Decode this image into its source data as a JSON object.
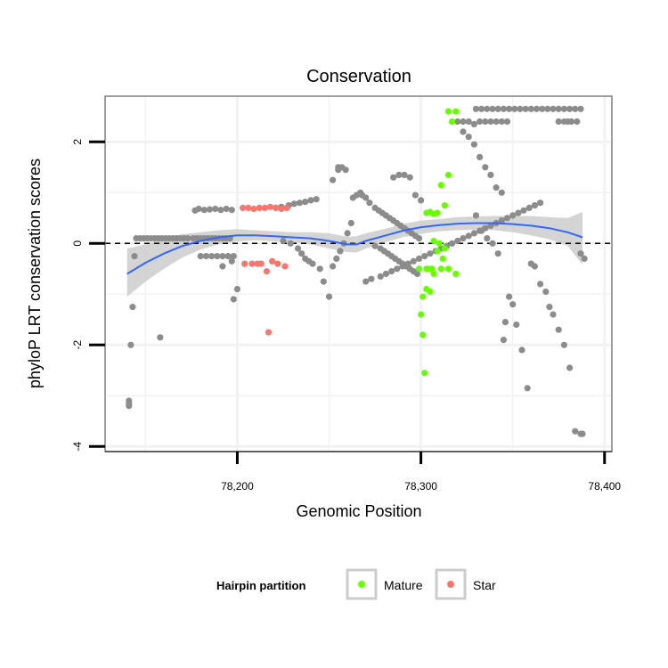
{
  "chart_data": {
    "type": "scatter",
    "title": "Conservation",
    "xlabel": "Genomic Position",
    "ylabel": "phyloP LRT conservation scores",
    "xlim": [
      78128,
      78404
    ],
    "ylim": [
      -4.1,
      2.9
    ],
    "x_ticks": [
      78200,
      78300,
      78400
    ],
    "x_tick_labels": [
      "78,200",
      "78,300",
      "78,400"
    ],
    "y_ticks": [
      -4,
      -2,
      0,
      2
    ],
    "y_tick_labels": [
      "-4",
      "-2",
      "0",
      "2"
    ],
    "grid": true,
    "reference_line": {
      "y": 0,
      "style": "dashed",
      "color": "#000000"
    },
    "legend": {
      "title": "Hairpin partition",
      "position": "bottom",
      "entries": [
        {
          "label": "Mature",
          "color": "#66ff00"
        },
        {
          "label": "Star",
          "color": "#f8766d"
        }
      ]
    },
    "colors": {
      "other": "#8c8c8c",
      "mature": "#66ff00",
      "star": "#f8766d",
      "smooth": "#3366ff",
      "band": "#cccccc",
      "panel_border": "#7f7f7f",
      "grid": "#f2f2f2"
    },
    "series": [
      {
        "group": "other",
        "x": [
          78141,
          78141,
          78141,
          78142,
          78143,
          78144,
          78145,
          78147,
          78149,
          78151,
          78153,
          78155,
          78157,
          78159,
          78161,
          78163,
          78165,
          78167,
          78169,
          78171,
          78173,
          78176,
          78178,
          78180,
          78182,
          78184,
          78186,
          78188,
          78190,
          78192,
          78194,
          78196,
          78177,
          78179,
          78182,
          78185,
          78188,
          78191,
          78194,
          78197,
          78180,
          78183,
          78186,
          78189,
          78192,
          78195,
          78198,
          78198,
          78200,
          78158,
          78192,
          78197,
          78221,
          78224,
          78228,
          78231,
          78234,
          78237,
          78240,
          78243,
          78225,
          78229,
          78233,
          78235,
          78237,
          78239,
          78241,
          78245,
          78247,
          78250,
          78252,
          78254,
          78256,
          78258,
          78260,
          78262,
          78252,
          78255,
          78255,
          78257,
          78259,
          78263,
          78265,
          78267,
          78268,
          78270,
          78272,
          78275,
          78277,
          78279,
          78281,
          78283,
          78285,
          78287,
          78289,
          78291,
          78293,
          78295,
          78297,
          78299,
          78275,
          78278,
          78280,
          78282,
          78284,
          78286,
          78288,
          78290,
          78292,
          78294,
          78296,
          78298,
          78285,
          78288,
          78291,
          78294,
          78297,
          78300,
          78270,
          78273,
          78278,
          78281,
          78284,
          78287,
          78290,
          78293,
          78296,
          78299,
          78302,
          78305,
          78308,
          78311,
          78314,
          78317,
          78320,
          78323,
          78326,
          78329,
          78332,
          78335,
          78338,
          78341,
          78344,
          78347,
          78350,
          78353,
          78356,
          78359,
          78362,
          78365,
          78330,
          78333,
          78336,
          78339,
          78342,
          78345,
          78348,
          78351,
          78354,
          78357,
          78360,
          78363,
          78366,
          78369,
          78372,
          78375,
          78378,
          78381,
          78384,
          78387,
          78320,
          78323,
          78326,
          78329,
          78332,
          78335,
          78338,
          78341,
          78344,
          78347,
          78323,
          78326,
          78329,
          78332,
          78335,
          78338,
          78341,
          78344,
          78330,
          78333,
          78336,
          78339,
          78342,
          78346,
          78345,
          78348,
          78350,
          78352,
          78355,
          78358,
          78360,
          78362,
          78365,
          78368,
          78370,
          78372,
          78375,
          78378,
          78381,
          78384,
          78387,
          78388,
          78375,
          78378,
          78380,
          78382,
          78385,
          78387,
          78389
        ],
        "y": [
          -3.2,
          -3.15,
          -3.1,
          -2.0,
          -1.25,
          -0.25,
          0.1,
          0.1,
          0.1,
          0.1,
          0.1,
          0.1,
          0.1,
          0.1,
          0.1,
          0.1,
          0.1,
          0.1,
          0.1,
          0.1,
          0.1,
          0.1,
          0.1,
          0.1,
          0.1,
          0.1,
          0.1,
          0.1,
          0.1,
          0.1,
          0.1,
          0.1,
          0.65,
          0.68,
          0.66,
          0.67,
          0.68,
          0.66,
          0.68,
          0.66,
          -0.25,
          -0.25,
          -0.25,
          -0.25,
          -0.25,
          -0.25,
          -0.25,
          -1.1,
          -0.9,
          -1.85,
          -0.45,
          -0.35,
          0.7,
          0.72,
          0.75,
          0.78,
          0.8,
          0.82,
          0.85,
          0.87,
          0.05,
          0.0,
          -0.1,
          -0.2,
          -0.3,
          -0.35,
          -0.4,
          -0.5,
          -0.75,
          -1.05,
          -0.45,
          -0.3,
          -0.15,
          0.0,
          0.2,
          0.4,
          1.25,
          1.45,
          1.5,
          1.5,
          1.45,
          0.9,
          0.95,
          1.0,
          0.95,
          0.9,
          0.8,
          0.7,
          0.65,
          0.6,
          0.55,
          0.5,
          0.45,
          0.4,
          0.35,
          0.3,
          0.25,
          0.2,
          0.15,
          0.1,
          -0.05,
          -0.1,
          -0.15,
          -0.2,
          -0.25,
          -0.3,
          -0.35,
          -0.4,
          -0.45,
          -0.5,
          -0.55,
          -0.6,
          1.3,
          1.35,
          1.35,
          1.3,
          0.95,
          0.85,
          -0.75,
          -0.7,
          -0.65,
          -0.6,
          -0.55,
          -0.5,
          -0.45,
          -0.4,
          -0.35,
          -0.3,
          -0.25,
          -0.2,
          -0.15,
          -0.1,
          -0.05,
          0.0,
          0.05,
          0.1,
          0.15,
          0.2,
          0.25,
          0.3,
          0.35,
          0.4,
          0.45,
          0.5,
          0.55,
          0.6,
          0.65,
          0.7,
          0.75,
          0.8,
          2.65,
          2.65,
          2.65,
          2.65,
          2.65,
          2.65,
          2.65,
          2.65,
          2.65,
          2.65,
          2.65,
          2.65,
          2.65,
          2.65,
          2.65,
          2.65,
          2.65,
          2.65,
          2.65,
          2.65,
          2.4,
          2.4,
          2.4,
          2.35,
          2.4,
          2.4,
          2.4,
          2.4,
          2.4,
          2.4,
          2.2,
          2.1,
          1.95,
          1.7,
          1.5,
          1.35,
          1.1,
          1.0,
          0.55,
          0.25,
          0.1,
          0.0,
          -0.2,
          -1.55,
          -1.9,
          -1.05,
          -1.2,
          -1.6,
          -2.1,
          -2.85,
          -0.4,
          -0.45,
          -0.8,
          -0.95,
          -1.25,
          -1.4,
          -1.7,
          -2.0,
          -2.45,
          -3.7,
          -3.75,
          -3.75,
          2.4,
          2.4,
          2.4,
          2.4,
          2.4,
          -0.2,
          -0.3
        ]
      },
      {
        "group": "star",
        "x": [
          78203,
          78206,
          78209,
          78212,
          78215,
          78218,
          78221,
          78224,
          78227,
          78204,
          78208,
          78211,
          78213,
          78216,
          78219,
          78222,
          78226,
          78217
        ],
        "y": [
          0.7,
          0.7,
          0.68,
          0.7,
          0.7,
          0.72,
          0.7,
          0.68,
          0.7,
          -0.4,
          -0.4,
          -0.4,
          -0.4,
          -0.55,
          -0.35,
          -0.4,
          -0.45,
          -1.75
        ]
      },
      {
        "group": "mature",
        "x": [
          78303,
          78305,
          78307,
          78309,
          78311,
          78313,
          78315,
          78317,
          78319,
          78303,
          78304,
          78306,
          78307,
          78309,
          78311,
          78313,
          78315,
          78317,
          78300,
          78301,
          78302,
          78299,
          78301,
          78303,
          78305,
          78307,
          78312,
          78315,
          78319,
          78310
        ],
        "y": [
          0.6,
          0.62,
          0.58,
          0.6,
          1.15,
          0.75,
          1.35,
          2.4,
          2.6,
          -0.5,
          -0.5,
          -0.5,
          0.05,
          -0.15,
          -0.5,
          -0.1,
          -0.5,
          2.4,
          -1.4,
          -1.8,
          -2.55,
          -0.5,
          -1.05,
          -0.9,
          -0.95,
          -0.6,
          -0.3,
          2.6,
          -0.6,
          0.0
        ]
      }
    ],
    "smooth": {
      "x": [
        78140,
        78150,
        78160,
        78170,
        78180,
        78190,
        78200,
        78210,
        78220,
        78230,
        78240,
        78250,
        78260,
        78265,
        78270,
        78280,
        78290,
        78300,
        78310,
        78320,
        78330,
        78340,
        78350,
        78360,
        78370,
        78380,
        78388
      ],
      "y": [
        -0.6,
        -0.38,
        -0.2,
        -0.05,
        0.05,
        0.12,
        0.16,
        0.16,
        0.14,
        0.12,
        0.1,
        0.05,
        -0.02,
        -0.02,
        0.05,
        0.15,
        0.25,
        0.32,
        0.36,
        0.39,
        0.4,
        0.4,
        0.38,
        0.35,
        0.3,
        0.22,
        0.12
      ],
      "lower": [
        -1.05,
        -0.75,
        -0.5,
        -0.28,
        -0.12,
        -0.02,
        0.04,
        0.06,
        0.04,
        0.02,
        -0.02,
        -0.1,
        -0.17,
        -0.18,
        -0.1,
        0.02,
        0.12,
        0.19,
        0.24,
        0.26,
        0.27,
        0.26,
        0.22,
        0.16,
        0.08,
        -0.05,
        -0.42
      ],
      "upper": [
        -0.1,
        -0.02,
        0.1,
        0.18,
        0.22,
        0.26,
        0.28,
        0.26,
        0.24,
        0.22,
        0.22,
        0.2,
        0.13,
        0.14,
        0.2,
        0.28,
        0.38,
        0.45,
        0.48,
        0.52,
        0.53,
        0.54,
        0.54,
        0.54,
        0.52,
        0.5,
        0.62
      ]
    }
  }
}
